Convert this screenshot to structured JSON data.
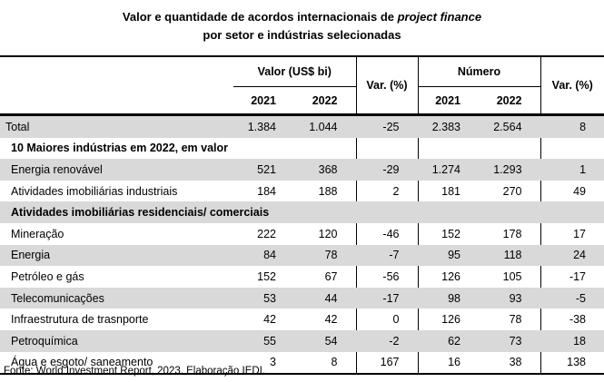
{
  "title": {
    "line1_prefix": "Valor e quantidade de acordos internacionais de ",
    "line1_italic": "project finance",
    "line2": "por setor e indústrias selecionadas"
  },
  "header": {
    "valor": "Valor (US$ bi)",
    "numero": "Número",
    "var1": "Var. (%)",
    "var2": "Var. (%)",
    "years": [
      "2021",
      "2022",
      "2021",
      "2022"
    ]
  },
  "rows": [
    {
      "label": "Total",
      "v2021": "1.384",
      "v2022": "1.044",
      "var": "-25",
      "n2021": "2.383",
      "n2022": "2.564",
      "nvar": "8"
    },
    {
      "label": "10 Maiores indústrias em 2022, em valor"
    },
    {
      "label": "Energia renovável",
      "v2021": "521",
      "v2022": "368",
      "var": "-29",
      "n2021": "1.274",
      "n2022": "1.293",
      "nvar": "1"
    },
    {
      "label": "Atividades imobiliárias industriais",
      "v2021": "184",
      "v2022": "188",
      "var": "2",
      "n2021": "181",
      "n2022": "270",
      "nvar": "49"
    },
    {
      "label": "Atividades imobiliárias residenciais/ comerciais"
    },
    {
      "label": "Mineração",
      "v2021": "222",
      "v2022": "120",
      "var": "-46",
      "n2021": "152",
      "n2022": "178",
      "nvar": "17"
    },
    {
      "label": "Energia",
      "v2021": "84",
      "v2022": "78",
      "var": "-7",
      "n2021": "95",
      "n2022": "118",
      "nvar": "24"
    },
    {
      "label": "Petróleo e gás",
      "v2021": "152",
      "v2022": "67",
      "var": "-56",
      "n2021": "126",
      "n2022": "105",
      "nvar": "-17"
    },
    {
      "label": "Telecomunicações",
      "v2021": "53",
      "v2022": "44",
      "var": "-17",
      "n2021": "98",
      "n2022": "93",
      "nvar": "-5"
    },
    {
      "label": "Infraestrutura de trasnporte",
      "v2021": "42",
      "v2022": "42",
      "var": "0",
      "n2021": "126",
      "n2022": "78",
      "nvar": "-38"
    },
    {
      "label": "Petroquímica",
      "v2021": "55",
      "v2022": "54",
      "var": "-2",
      "n2021": "62",
      "n2022": "73",
      "nvar": "18"
    },
    {
      "label": "Água e esgoto/ saneamento",
      "v2021": "3",
      "v2022": "8",
      "var": "167",
      "n2021": "16",
      "n2022": "38",
      "nvar": "138"
    }
  ],
  "source": "Fonte: World Investment Report, 2023. Elaboração IEDI.",
  "colors": {
    "row_shade": "#d9d9d9"
  }
}
